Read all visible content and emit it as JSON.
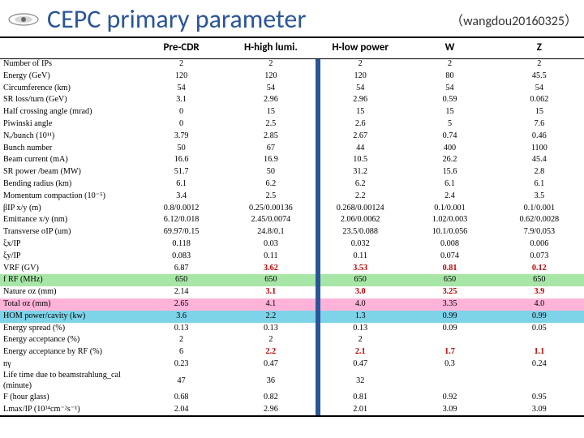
{
  "header": {
    "title": "CEPC primary parameter",
    "subtitle": "（wangdou20160325）"
  },
  "table": {
    "columns": [
      "",
      "Pre-CDR",
      "H-high lumi.",
      "H-low power",
      "W",
      "Z"
    ],
    "rows": [
      {
        "label": "Number of IPs",
        "vals": [
          "2",
          "2",
          "2",
          "2",
          "2"
        ]
      },
      {
        "label": "Energy (GeV)",
        "vals": [
          "120",
          "120",
          "120",
          "80",
          "45.5"
        ]
      },
      {
        "label": "Circumference (km)",
        "vals": [
          "54",
          "54",
          "54",
          "54",
          "54"
        ]
      },
      {
        "label": "SR loss/turn (GeV)",
        "vals": [
          "3.1",
          "2.96",
          "2.96",
          "0.59",
          "0.062"
        ]
      },
      {
        "label": "Half crossing angle (mrad)",
        "vals": [
          "0",
          "15",
          "15",
          "15",
          "15"
        ]
      },
      {
        "label": "Piwinski angle",
        "vals": [
          "0",
          "2.5",
          "2.6",
          "5",
          "7.6"
        ]
      },
      {
        "label": "Nₑ/bunch (10¹¹)",
        "vals": [
          "3.79",
          "2.85",
          "2.67",
          "0.74",
          "0.46"
        ]
      },
      {
        "label": "Bunch number",
        "vals": [
          "50",
          "67",
          "44",
          "400",
          "1100"
        ]
      },
      {
        "label": "Beam current (mA)",
        "vals": [
          "16.6",
          "16.9",
          "10.5",
          "26.2",
          "45.4"
        ]
      },
      {
        "label": "SR power /beam (MW)",
        "vals": [
          "51.7",
          "50",
          "31.2",
          "15.6",
          "2.8"
        ]
      },
      {
        "label": "Bending radius (km)",
        "vals": [
          "6.1",
          "6.2",
          "6.2",
          "6.1",
          "6.1"
        ]
      },
      {
        "label": "Momentum compaction (10⁻⁵)",
        "vals": [
          "3.4",
          "2.5",
          "2.2",
          "2.4",
          "3.5"
        ]
      },
      {
        "label": "βIP x/y (m)",
        "vals": [
          "0.8/0.0012",
          "0.25/0.00136",
          "0.268/0.00124",
          "0.1/0.001",
          "0.1/0.001"
        ]
      },
      {
        "label": "Emittance x/y (nm)",
        "vals": [
          "6.12/0.018",
          "2.45/0.0074",
          "2.06/0.0062",
          "1.02/0.003",
          "0.62/0.0028"
        ]
      },
      {
        "label": "Transverse σIP (um)",
        "vals": [
          "69.97/0.15",
          "24.8/0.1",
          "23.5/0.088",
          "10.1/0.056",
          "7.9/0.053"
        ]
      },
      {
        "label": "ξx/IP",
        "vals": [
          "0.118",
          "0.03",
          "0.032",
          "0.008",
          "0.006"
        ]
      },
      {
        "label": "ξy/IP",
        "vals": [
          "0.083",
          "0.11",
          "0.11",
          "0.074",
          "0.073"
        ]
      },
      {
        "label": "VRF (GV)",
        "vals": [
          "6.87",
          "3.62",
          "3.53",
          "0.81",
          "0.12"
        ],
        "boldred": [
          1,
          2,
          3,
          4
        ]
      },
      {
        "label": "f RF (MHz)",
        "vals": [
          "650",
          "650",
          "650",
          "650",
          "650"
        ],
        "hl": "green"
      },
      {
        "label": "Nature σz (mm)",
        "vals": [
          "2.14",
          "3.1",
          "3.0",
          "3.25",
          "3.9"
        ],
        "boldred": [
          1,
          2,
          3,
          4
        ]
      },
      {
        "label": "Total σz (mm)",
        "vals": [
          "2.65",
          "4.1",
          "4.0",
          "3.35",
          "4.0"
        ],
        "hl": "pink"
      },
      {
        "label": "HOM power/cavity (kw)",
        "vals": [
          "3.6",
          "2.2",
          "1.3",
          "0.99",
          "0.99"
        ],
        "hl": "cyan"
      },
      {
        "label": "Energy spread (%)",
        "vals": [
          "0.13",
          "0.13",
          "0.13",
          "0.09",
          "0.05"
        ]
      },
      {
        "label": "Energy acceptance (%)",
        "vals": [
          "2",
          "2",
          "2",
          "",
          ""
        ]
      },
      {
        "label": "Energy acceptance by RF (%)",
        "vals": [
          "6",
          "2.2",
          "2.1",
          "1.7",
          "1.1"
        ],
        "boldred": [
          1,
          2,
          3,
          4
        ]
      },
      {
        "label": "nγ",
        "vals": [
          "0.23",
          "0.47",
          "0.47",
          "0.3",
          "0.24"
        ]
      },
      {
        "label": "Life time due to beamstrahlung_cal (minute)",
        "vals": [
          "47",
          "36",
          "32",
          "",
          ""
        ]
      },
      {
        "label": "F (hour glass)",
        "vals": [
          "0.68",
          "0.82",
          "0.81",
          "0.92",
          "0.95"
        ]
      },
      {
        "label": "Lmax/IP (10³⁴cm⁻²s⁻¹)",
        "vals": [
          "2.04",
          "2.96",
          "2.01",
          "3.09",
          "3.09"
        ]
      }
    ]
  }
}
